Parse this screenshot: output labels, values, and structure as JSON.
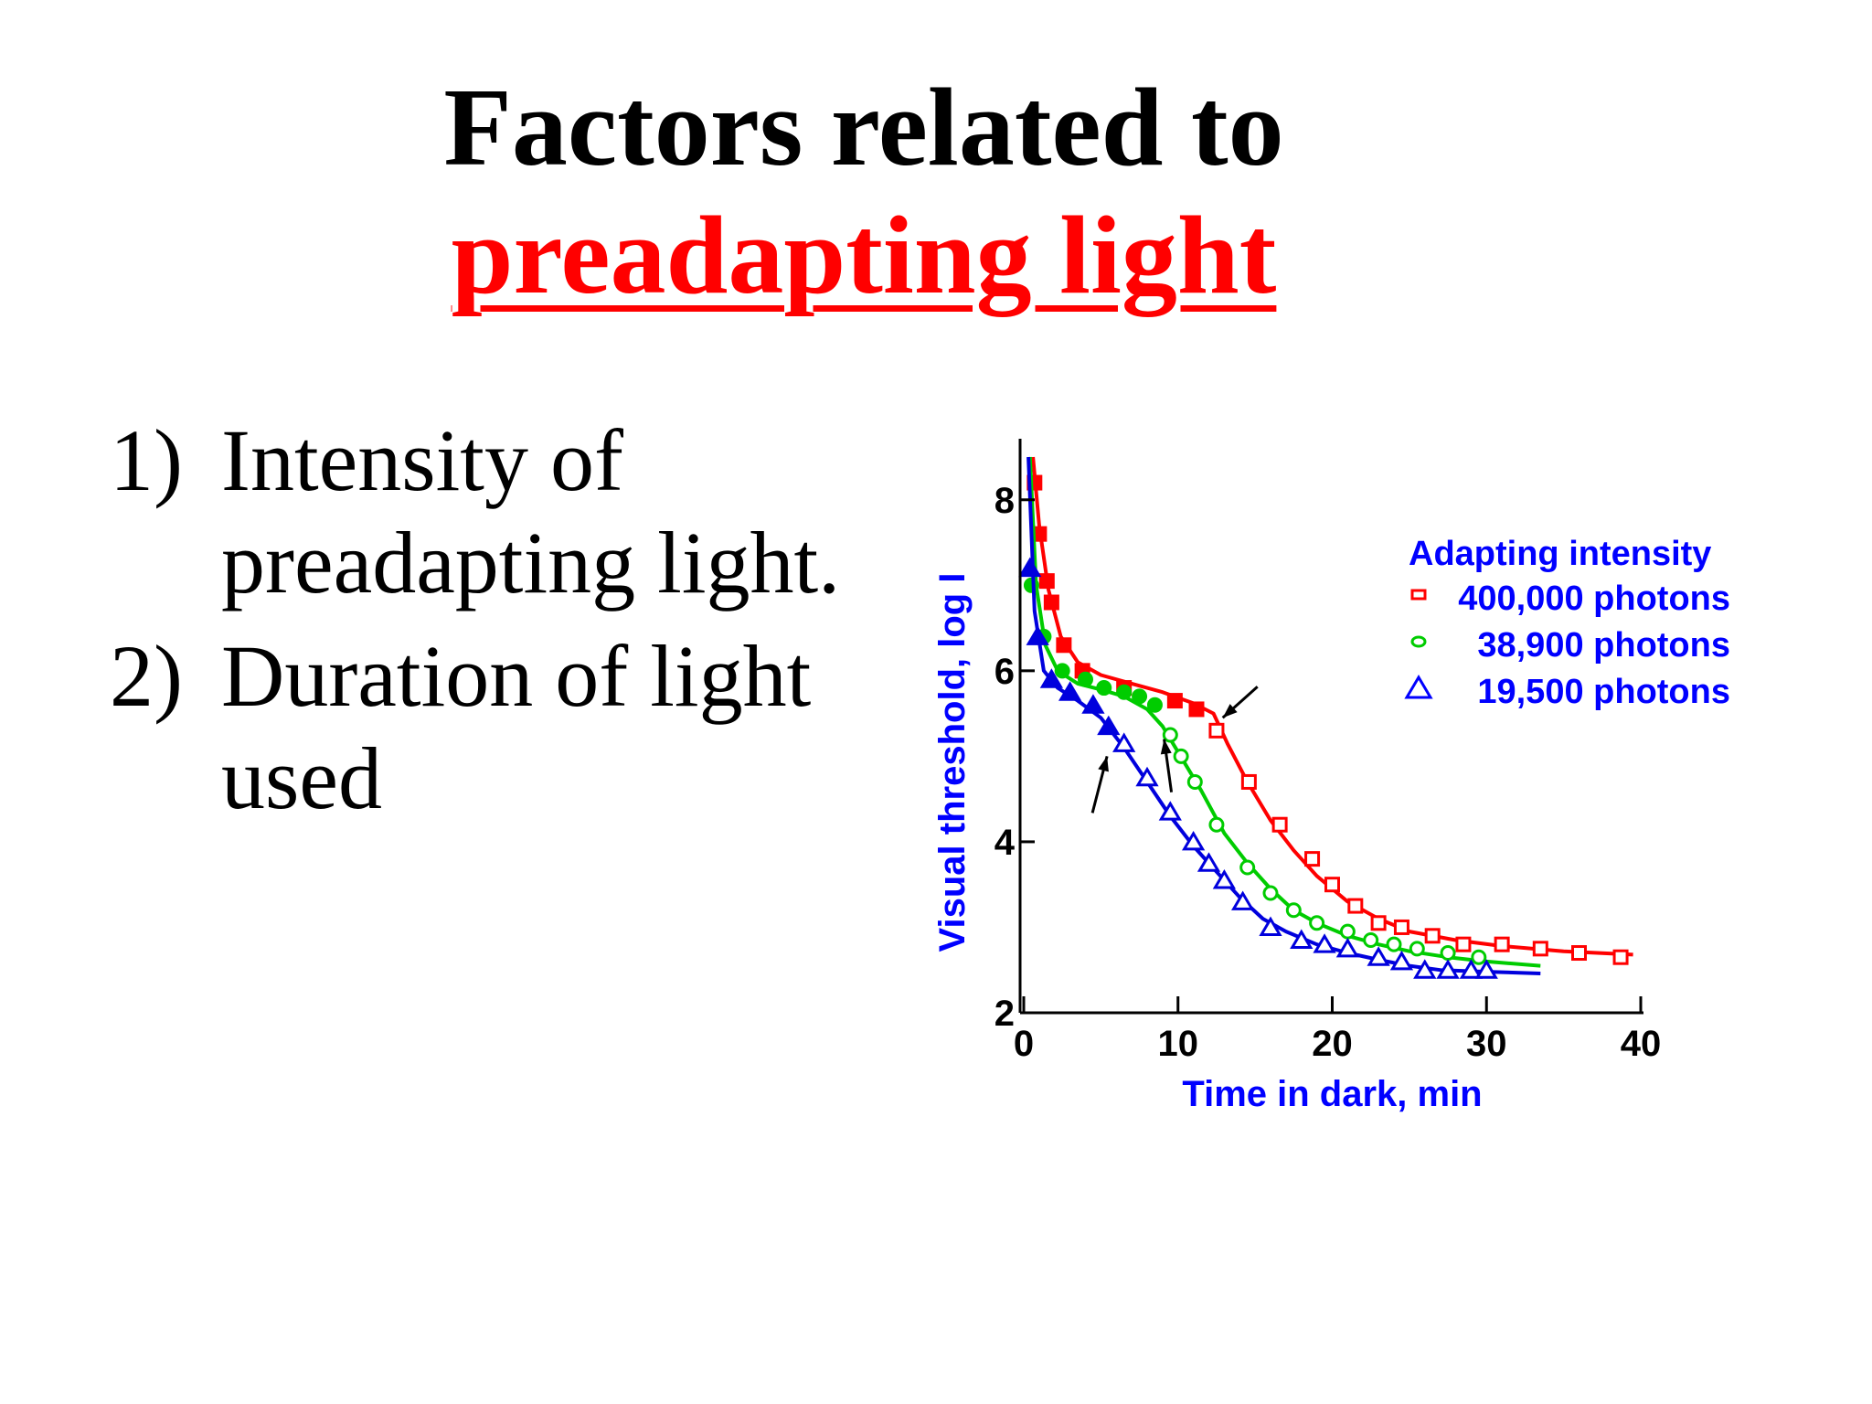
{
  "slide": {
    "title_line1": "Factors related to",
    "title_line2": "preadapting light",
    "bullets": [
      {
        "num": "1)",
        "text": "Intensity of preadapting light."
      },
      {
        "num": "2)",
        "text": "Duration of light used"
      }
    ]
  },
  "colors": {
    "title": "#000000",
    "accent": "#ff0000",
    "axis_text": "#0000ff"
  },
  "chart_data": {
    "type": "scatter",
    "xlabel": "Time in dark, min",
    "ylabel": "Visual threshold, log I",
    "xlim": [
      0,
      40
    ],
    "ylim": [
      2,
      8.5
    ],
    "xticks": [
      0,
      10,
      20,
      30,
      40
    ],
    "yticks": [
      2,
      4,
      6,
      8
    ],
    "grid": false,
    "legend_title": "Adapting intensity",
    "legend_position": "top-right",
    "series": [
      {
        "name": "400,000 photons",
        "color": "#ff0000",
        "marker": "square",
        "x": [
          0.7,
          1.0,
          1.5,
          1.8,
          2.6,
          3.8,
          6.5,
          9.8,
          11.2,
          12.5,
          14.6,
          16.6,
          18.7,
          20.0,
          21.5,
          23.0,
          24.5,
          26.5,
          28.5,
          31.0,
          33.5,
          36.0,
          38.7
        ],
        "y": [
          8.2,
          7.6,
          7.05,
          6.8,
          6.3,
          6.0,
          5.8,
          5.65,
          5.55,
          5.3,
          4.7,
          4.2,
          3.8,
          3.5,
          3.25,
          3.05,
          3.0,
          2.9,
          2.8,
          2.8,
          2.75,
          2.7,
          2.65
        ],
        "curve_x": [
          0.6,
          1.0,
          1.6,
          2.4,
          3.5,
          5.0,
          7.0,
          9.0,
          11.0,
          12.3,
          13.2,
          14.5,
          16.0,
          17.5,
          19.0,
          21.0,
          23.0,
          25.0,
          28.0,
          31.0,
          35.0,
          39.5
        ],
        "curve_y": [
          8.5,
          7.7,
          6.95,
          6.4,
          6.1,
          5.95,
          5.85,
          5.75,
          5.62,
          5.5,
          5.15,
          4.7,
          4.25,
          3.9,
          3.6,
          3.3,
          3.1,
          2.95,
          2.85,
          2.78,
          2.72,
          2.68
        ],
        "filled_until": 12.0
      },
      {
        "name": "38,900 photons",
        "color": "#00cc00",
        "marker": "circle",
        "x": [
          0.5,
          1.3,
          2.5,
          4.0,
          5.2,
          6.5,
          7.5,
          8.5,
          9.5,
          10.2,
          11.1,
          12.5,
          14.5,
          16.0,
          17.5,
          19.0,
          21.0,
          22.5,
          24.0,
          25.5,
          27.5,
          29.5
        ],
        "y": [
          7.0,
          6.4,
          6.0,
          5.9,
          5.8,
          5.75,
          5.7,
          5.6,
          5.25,
          5.0,
          4.7,
          4.2,
          3.7,
          3.4,
          3.2,
          3.05,
          2.95,
          2.85,
          2.8,
          2.75,
          2.7,
          2.65
        ],
        "curve_x": [
          0.4,
          0.8,
          1.4,
          2.2,
          3.5,
          5.0,
          6.5,
          8.0,
          9.0,
          10.0,
          11.5,
          13.0,
          14.5,
          16.0,
          17.5,
          19.0,
          21.0,
          23.0,
          25.0,
          27.5,
          30.0,
          33.5
        ],
        "curve_y": [
          8.5,
          7.0,
          6.3,
          6.0,
          5.85,
          5.78,
          5.7,
          5.55,
          5.35,
          5.05,
          4.6,
          4.1,
          3.75,
          3.45,
          3.2,
          3.05,
          2.9,
          2.8,
          2.72,
          2.65,
          2.6,
          2.55
        ],
        "filled_until": 8.5
      },
      {
        "name": "19,500 photons",
        "color": "#0000dd",
        "marker": "triangle",
        "x": [
          0.4,
          0.9,
          1.8,
          3.0,
          4.5,
          5.5,
          6.5,
          8.0,
          9.5,
          11.0,
          12.0,
          13.0,
          14.2,
          16.0,
          18.0,
          19.5,
          21.0,
          23.0,
          24.5,
          26.0,
          27.5,
          29.0,
          30.0
        ],
        "y": [
          7.2,
          6.4,
          5.9,
          5.75,
          5.6,
          5.35,
          5.15,
          4.75,
          4.35,
          4.0,
          3.75,
          3.55,
          3.3,
          3.0,
          2.85,
          2.8,
          2.75,
          2.65,
          2.6,
          2.5,
          2.5,
          2.5,
          2.5
        ],
        "curve_x": [
          0.3,
          0.7,
          1.3,
          2.2,
          3.5,
          5.0,
          6.5,
          8.0,
          9.5,
          11.0,
          12.5,
          14.0,
          15.5,
          17.0,
          19.0,
          21.0,
          23.0,
          25.0,
          27.0,
          30.0,
          33.5
        ],
        "curve_y": [
          8.5,
          6.7,
          6.0,
          5.8,
          5.65,
          5.45,
          5.1,
          4.7,
          4.3,
          3.95,
          3.65,
          3.35,
          3.1,
          2.95,
          2.8,
          2.7,
          2.62,
          2.55,
          2.5,
          2.48,
          2.46
        ],
        "filled_until": 5.5
      }
    ]
  }
}
